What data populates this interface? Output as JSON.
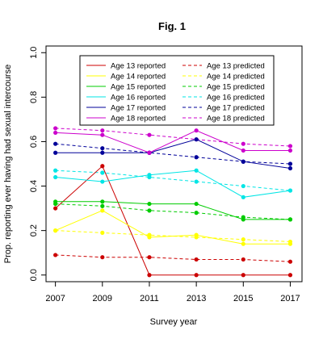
{
  "chart_data": {
    "type": "line",
    "title": "Fig. 1",
    "xlabel": "Survey year",
    "ylabel": "Prop. reporting ever having had sexual intercourse",
    "x": [
      2007,
      2009,
      2011,
      2013,
      2015,
      2017
    ],
    "x_ticks": [
      "2007",
      "2009",
      "2011",
      "2013",
      "2015",
      "2017"
    ],
    "y_ticks": [
      "0.0",
      "0.2",
      "0.4",
      "0.6",
      "0.8",
      "1.0"
    ],
    "xlim": [
      2006.6,
      2017.5
    ],
    "ylim": [
      -0.03,
      1.03
    ],
    "grid": false,
    "legend_position": "top-center",
    "series": [
      {
        "name": "Age 13 reported",
        "kind": "reported",
        "color": "#cc0000",
        "values": [
          0.3,
          0.49,
          0.0,
          0.0,
          0.0,
          0.0
        ]
      },
      {
        "name": "Age 14 reported",
        "kind": "reported",
        "color": "#ffff00",
        "values": [
          0.2,
          0.29,
          0.17,
          0.18,
          0.14,
          0.14
        ]
      },
      {
        "name": "Age 15 reported",
        "kind": "reported",
        "color": "#00cc00",
        "values": [
          0.33,
          0.33,
          0.32,
          0.32,
          0.25,
          0.25
        ]
      },
      {
        "name": "Age 16 reported",
        "kind": "reported",
        "color": "#00e5e5",
        "values": [
          0.44,
          0.42,
          0.45,
          0.47,
          0.35,
          0.38
        ]
      },
      {
        "name": "Age 17 reported",
        "kind": "reported",
        "color": "#000099",
        "values": [
          0.55,
          0.55,
          0.55,
          0.61,
          0.51,
          0.48
        ]
      },
      {
        "name": "Age 18 reported",
        "kind": "reported",
        "color": "#cc00cc",
        "values": [
          0.64,
          0.63,
          0.55,
          0.65,
          0.56,
          0.56
        ]
      },
      {
        "name": "Age 13 predicted",
        "kind": "predicted",
        "color": "#cc0000",
        "values": [
          0.09,
          0.08,
          0.08,
          0.07,
          0.07,
          0.06
        ]
      },
      {
        "name": "Age 14 predicted",
        "kind": "predicted",
        "color": "#ffff00",
        "values": [
          0.2,
          0.19,
          0.18,
          0.17,
          0.16,
          0.15
        ]
      },
      {
        "name": "Age 15 predicted",
        "kind": "predicted",
        "color": "#00cc00",
        "values": [
          0.32,
          0.31,
          0.29,
          0.28,
          0.26,
          0.25
        ]
      },
      {
        "name": "Age 16 predicted",
        "kind": "predicted",
        "color": "#00e5e5",
        "values": [
          0.47,
          0.46,
          0.44,
          0.42,
          0.4,
          0.38
        ]
      },
      {
        "name": "Age 17 predicted",
        "kind": "predicted",
        "color": "#000099",
        "values": [
          0.59,
          0.57,
          0.55,
          0.53,
          0.51,
          0.5
        ]
      },
      {
        "name": "Age 18 predicted",
        "kind": "predicted",
        "color": "#cc00cc",
        "values": [
          0.66,
          0.65,
          0.63,
          0.61,
          0.59,
          0.58
        ]
      }
    ]
  }
}
